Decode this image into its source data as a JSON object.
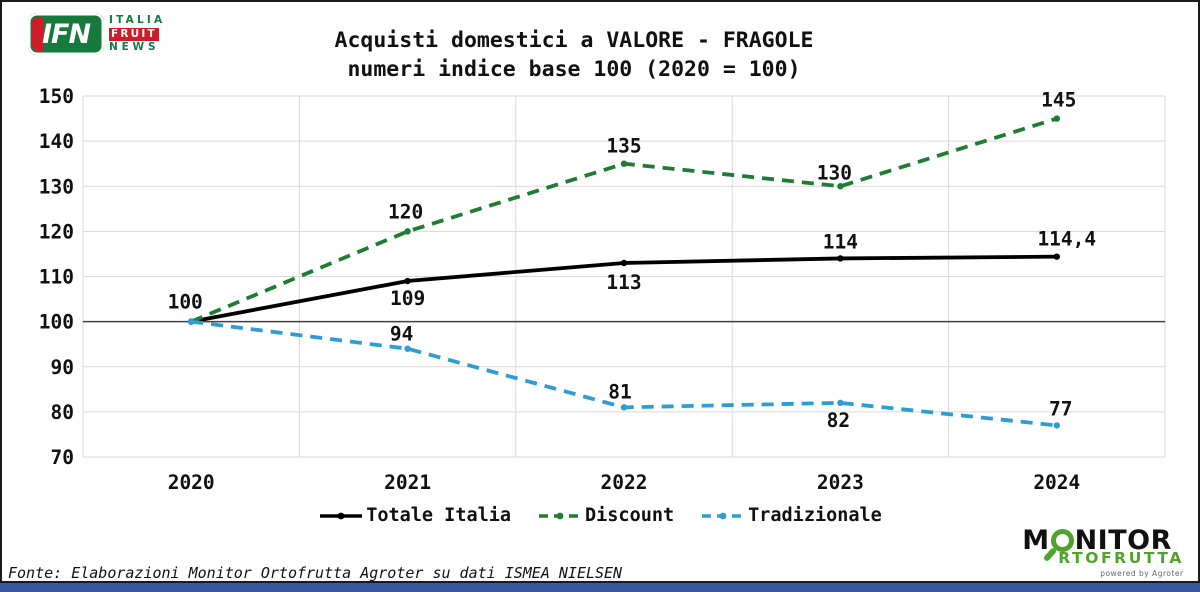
{
  "colors": {
    "grid": "#d9d9d9",
    "baseline": "#404040",
    "frame": "#1a1a1a",
    "bottom_bar": "#35599e",
    "ifn_green": "#167a3c",
    "ifn_red": "#d11a2a",
    "monitor_green": "#4fa32b",
    "monitor_black": "#111111"
  },
  "branding": {
    "ifn": {
      "abbr": "IFN",
      "line1": "ITALIA",
      "line2": "FRUIT",
      "line3": "NEWS"
    },
    "monitor": {
      "word_pre": "M",
      "word_post": "NITOR",
      "line2": "RTOFRUTTA",
      "line3": "powered by Agroter"
    }
  },
  "chart_data": {
    "type": "line",
    "title": "Acquisti domestici a VALORE - FRAGOLE",
    "subtitle": "numeri indice base 100 (2020 = 100)",
    "categories": [
      "2020",
      "2021",
      "2022",
      "2023",
      "2024"
    ],
    "series": [
      {
        "name": "Totale Italia",
        "color": "#000000",
        "dash": "solid",
        "values": [
          100,
          109,
          113,
          114,
          114.4
        ],
        "labels": [
          "100",
          "109",
          "113",
          "114",
          "114,4"
        ],
        "label_offsets": [
          [
            -6,
            -13
          ],
          [
            0,
            24
          ],
          [
            0,
            26
          ],
          [
            0,
            -10
          ],
          [
            10,
            -11
          ]
        ]
      },
      {
        "name": "Discount",
        "color": "#1e7d33",
        "dash": "dashed",
        "values": [
          100,
          120,
          135,
          130,
          145
        ],
        "labels": [
          "",
          "120",
          "135",
          "130",
          "145"
        ],
        "label_offsets": [
          [
            0,
            0
          ],
          [
            -2,
            -13
          ],
          [
            0,
            -11
          ],
          [
            -6,
            -7
          ],
          [
            2,
            -12
          ]
        ]
      },
      {
        "name": "Tradizionale",
        "color": "#2d9dd6",
        "dash": "dashed",
        "values": [
          100,
          94,
          81,
          82,
          77
        ],
        "labels": [
          "",
          "94",
          "81",
          "82",
          "77"
        ],
        "label_offsets": [
          [
            0,
            0
          ],
          [
            -6,
            -8
          ],
          [
            -4,
            -9
          ],
          [
            -2,
            24
          ],
          [
            4,
            -10
          ]
        ]
      }
    ],
    "ylim": [
      70,
      150
    ],
    "ytick_values": [
      150,
      140,
      130,
      120,
      110,
      100,
      90,
      80,
      70
    ],
    "baseline_value": 100,
    "grid": true,
    "legend_position": "bottom"
  },
  "footer": {
    "source": "Fonte: Elaborazioni Monitor Ortofrutta Agroter su dati ISMEA NIELSEN"
  }
}
